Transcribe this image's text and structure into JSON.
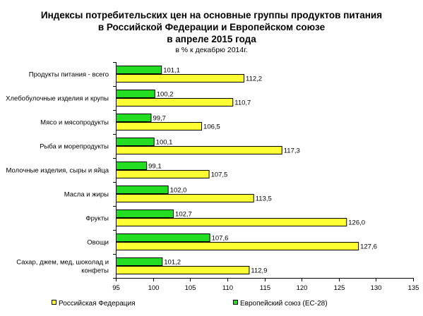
{
  "chart_data": {
    "type": "bar",
    "orientation": "horizontal",
    "title_lines": [
      "Индексы потребительских цен на основные группы продуктов питания",
      "в Российской Федерации и Европейском союзе",
      "в апреле 2015 года"
    ],
    "subtitle": "в % к декабрю 2014г.",
    "categories": [
      [
        "Продукты питания - всего"
      ],
      [
        "Хлебобулочные изделия и крупы"
      ],
      [
        "Мясо и мясопродукты"
      ],
      [
        "Рыба и морепродукты"
      ],
      [
        "Молочные изделия, сыры и яйца"
      ],
      [
        "Масла и жиры"
      ],
      [
        "Фрукты"
      ],
      [
        "Овощи"
      ],
      [
        "Сахар, джем, мед, шоколад и",
        "конфеты"
      ]
    ],
    "series": [
      {
        "name": "Европейский союз (ЕС-28)",
        "color": "#22dd22",
        "values": [
          101.1,
          100.2,
          99.7,
          100.1,
          99.1,
          102.0,
          102.7,
          107.6,
          101.2
        ],
        "labels": [
          "101,1",
          "100,2",
          "99,7",
          "100,1",
          "99,1",
          "102,0",
          "102,7",
          "107,6",
          "101,2"
        ]
      },
      {
        "name": "Российская Федерация",
        "color": "#ffff33",
        "values": [
          112.2,
          110.7,
          106.5,
          117.3,
          107.5,
          113.5,
          126.0,
          127.6,
          112.9
        ],
        "labels": [
          "112,2",
          "110,7",
          "106,5",
          "117,3",
          "107,5",
          "113,5",
          "126,0",
          "127,6",
          "112,9"
        ]
      }
    ],
    "xlim": [
      95,
      135
    ],
    "xticks": [
      95,
      100,
      105,
      110,
      115,
      120,
      125,
      130,
      135
    ],
    "grid": false,
    "legend_position": "bottom",
    "legend_order": [
      "Российская Федерация",
      "Европейский союз (ЕС-28)"
    ]
  }
}
